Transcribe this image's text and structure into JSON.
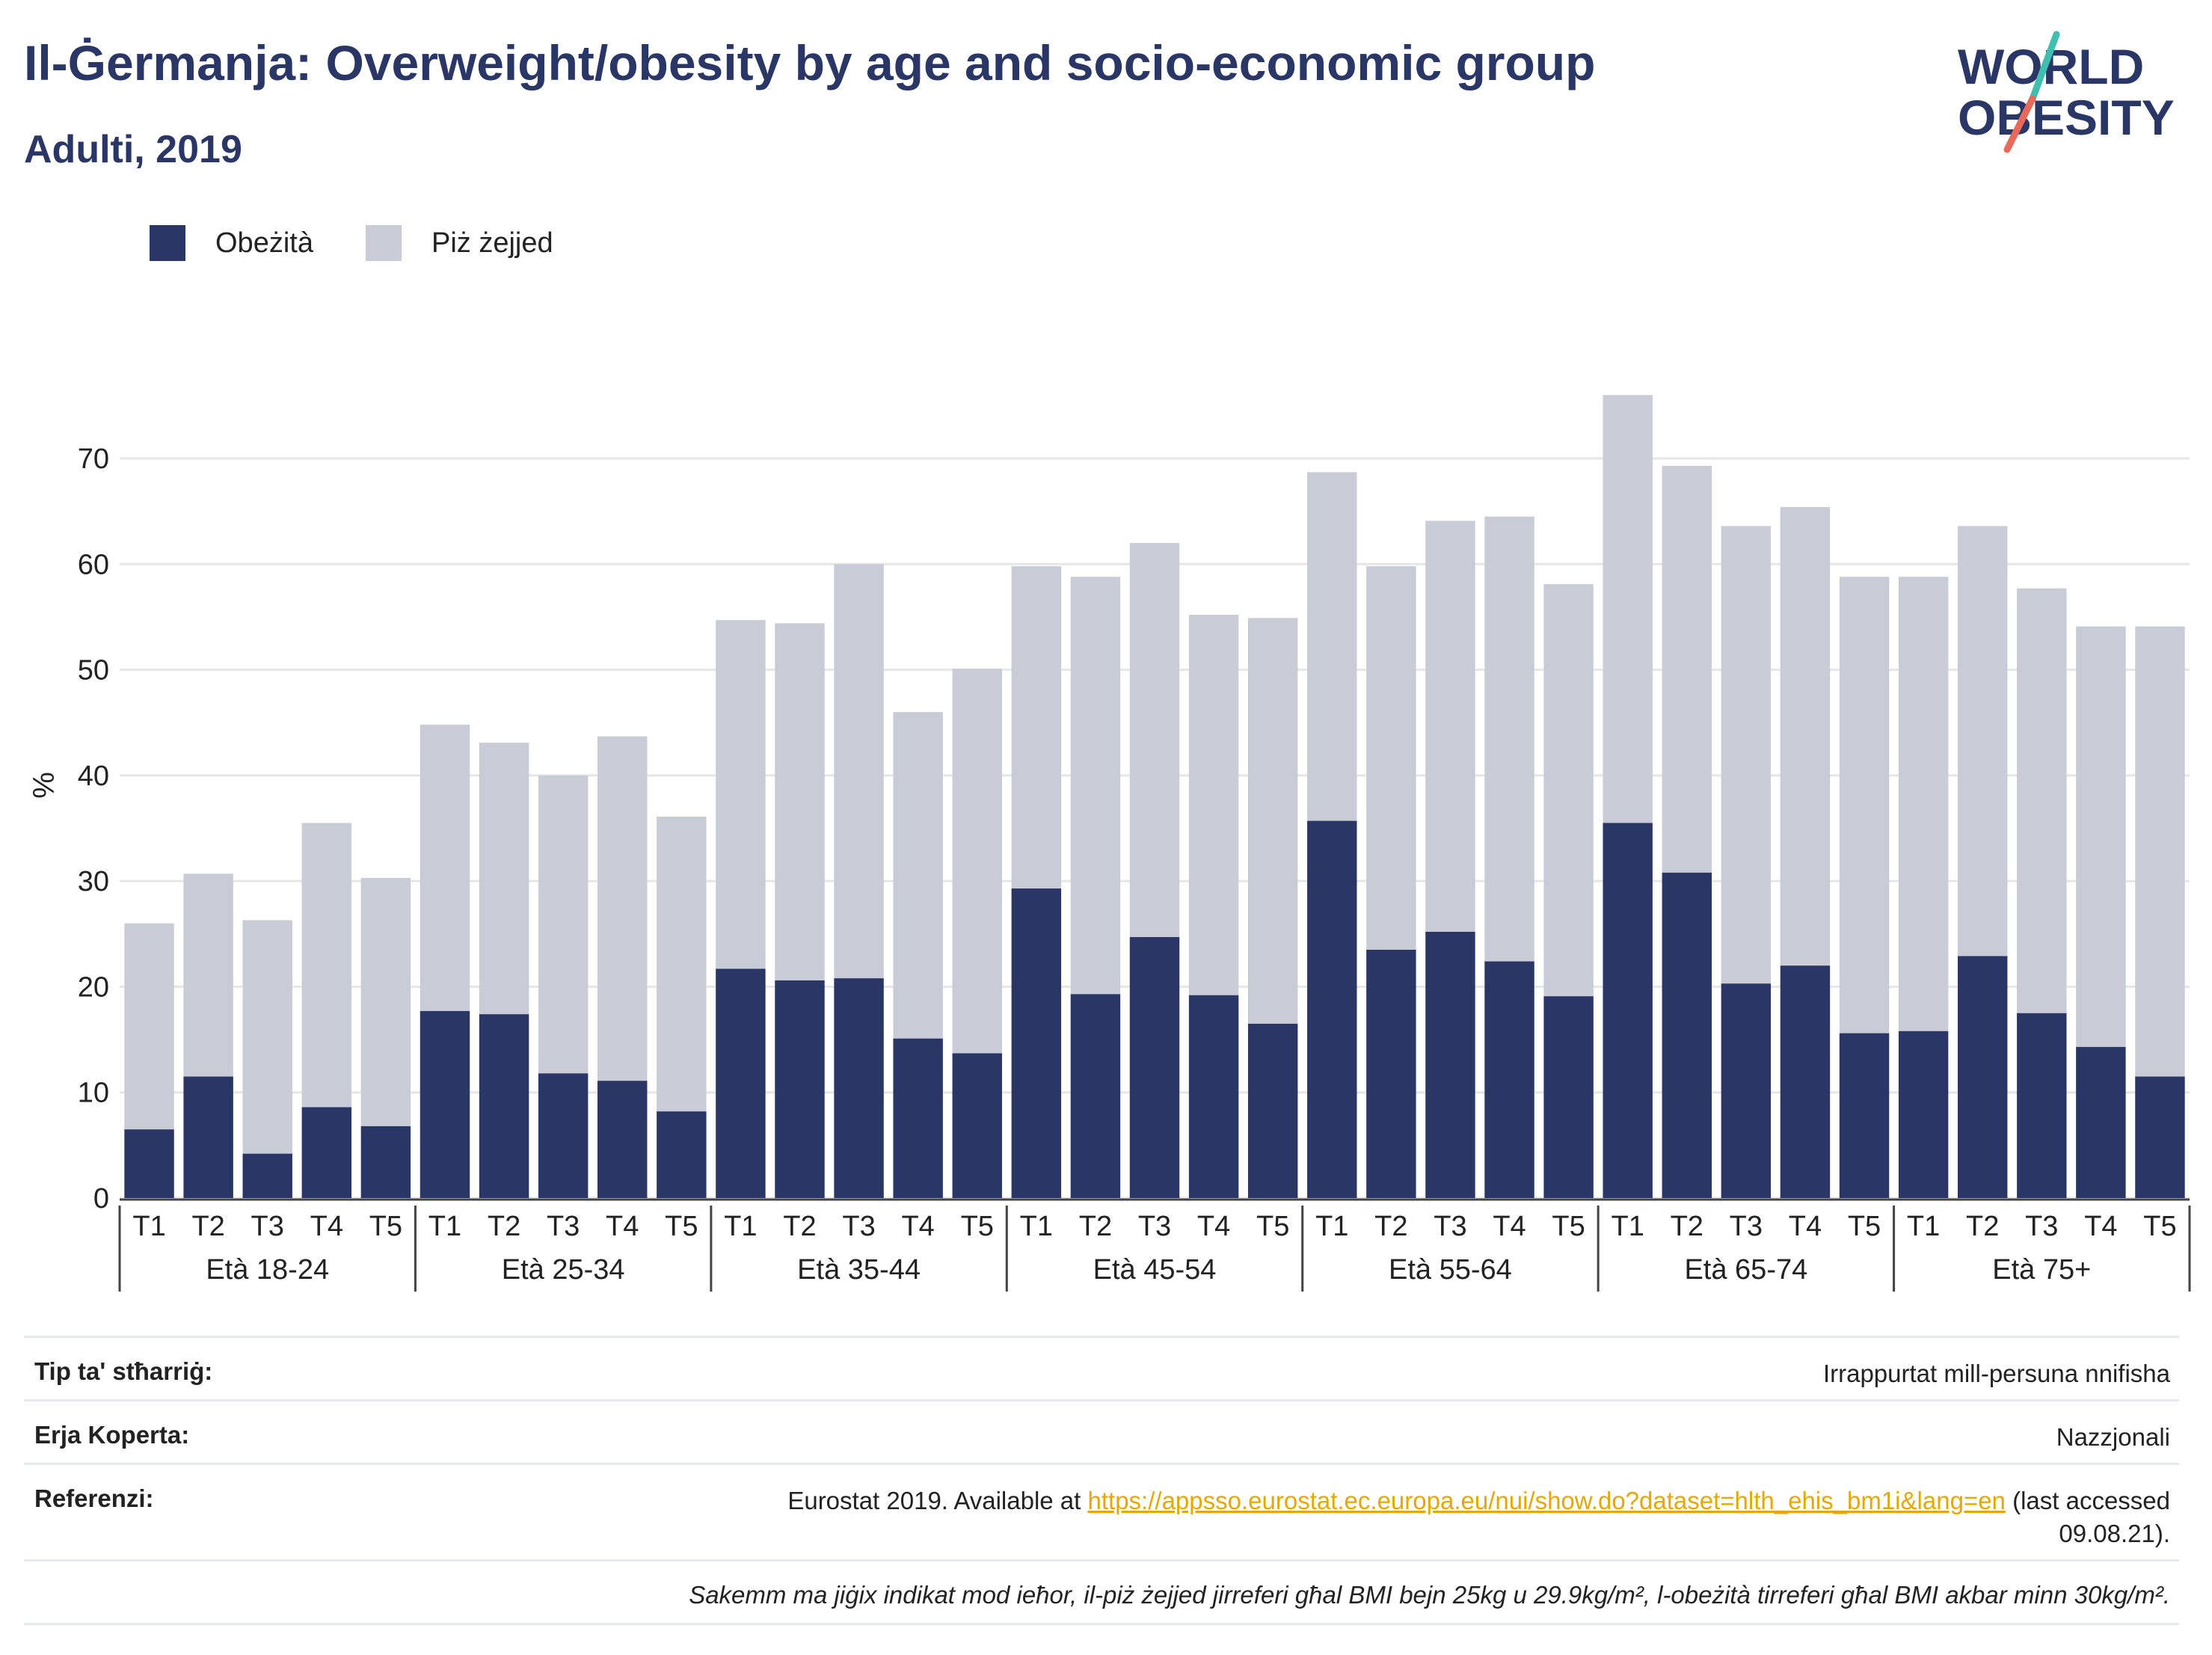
{
  "header": {
    "title": "Il-Ġermanja: Overweight/obesity by age and socio-economic group",
    "subtitle": "Adulti, 2019"
  },
  "logo": {
    "line1": "WORLD",
    "line2": "OBESITY"
  },
  "colors": {
    "obese": "#2a3666",
    "overweight": "#c9cbd7",
    "grid": "#e6e6e6",
    "link": "#e6a800"
  },
  "chart_data": {
    "type": "bar",
    "stacked": true,
    "ylabel": "%",
    "ylim": [
      0,
      78
    ],
    "yticks": [
      0,
      10,
      20,
      30,
      40,
      50,
      60,
      70
    ],
    "grid": true,
    "legend_position": "top-left",
    "groups": [
      "Età 18-24",
      "Età 25-34",
      "Età 35-44",
      "Età 45-54",
      "Età 55-64",
      "Età 65-74",
      "Età 75+"
    ],
    "categories": [
      "T1",
      "T2",
      "T3",
      "T4",
      "T5"
    ],
    "series": [
      {
        "name": "Obeżità",
        "values": [
          [
            6.5,
            11.5,
            4.2,
            8.6,
            6.8
          ],
          [
            17.7,
            17.4,
            11.8,
            11.1,
            8.2
          ],
          [
            21.7,
            20.6,
            20.8,
            15.1,
            13.7
          ],
          [
            29.3,
            19.3,
            24.7,
            19.2,
            16.5
          ],
          [
            35.7,
            23.5,
            25.2,
            22.4,
            19.1
          ],
          [
            35.5,
            30.8,
            20.3,
            22.0,
            15.6
          ],
          [
            15.8,
            22.9,
            17.5,
            14.3,
            11.5
          ]
        ]
      },
      {
        "name": "Piż żejjed",
        "values": [
          [
            19.5,
            19.2,
            22.1,
            26.9,
            23.5
          ],
          [
            27.1,
            25.7,
            28.2,
            32.6,
            27.9
          ],
          [
            33.0,
            33.8,
            39.2,
            30.9,
            36.4
          ],
          [
            30.5,
            39.5,
            37.3,
            36.0,
            38.4
          ],
          [
            33.0,
            36.3,
            38.9,
            42.1,
            39.0
          ],
          [
            40.5,
            38.5,
            43.3,
            43.4,
            43.2
          ],
          [
            43.0,
            40.7,
            40.2,
            39.8,
            42.6
          ]
        ]
      }
    ]
  },
  "info": {
    "rows": [
      {
        "label": "Tip ta' stħarriġ:",
        "value": "Irrappurtat mill-persuna nnifisha"
      },
      {
        "label": "Erja Koperta:",
        "value": "Nazzjonali"
      },
      {
        "label": "Referenzi:",
        "value_prefix": "Eurostat 2019. Available at ",
        "link": "https://appsso.eurostat.ec.europa.eu/nui/show.do?dataset=hlth_ehis_bm1i&lang=en",
        "value_suffix": " (last accessed",
        "value_line2": "09.08.21)."
      }
    ],
    "note": "Sakemm ma jiġix indikat mod ieħor, il-piż żejjed jirreferi għal BMI bejn 25kg u 29.9kg/m², l-obeżità tirreferi għal BMI akbar minn 30kg/m²."
  }
}
